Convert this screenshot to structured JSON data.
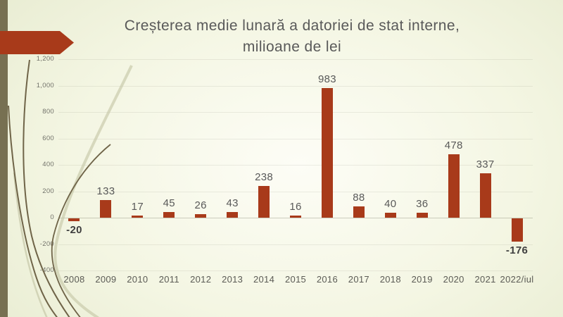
{
  "slide": {
    "title_line1": "Creșterea medie lunară a datoriei de stat interne,",
    "title_line2": "milioane de lei"
  },
  "chart_data": {
    "type": "bar",
    "title": "Creșterea medie lunară a datoriei de stat interne, milioane de lei",
    "categories": [
      "2008",
      "2009",
      "2010",
      "2011",
      "2012",
      "2013",
      "2014",
      "2015",
      "2016",
      "2017",
      "2018",
      "2019",
      "2020",
      "2021",
      "2022/iul"
    ],
    "values": [
      -20,
      133,
      17,
      45,
      26,
      43,
      238,
      16,
      983,
      88,
      40,
      36,
      478,
      337,
      -176
    ],
    "xlabel": "",
    "ylabel": "",
    "ylim": [
      -400,
      1200
    ],
    "ytick_step": 200,
    "grid": true,
    "legend": "none",
    "value_labels": true
  },
  "colors": {
    "bar": "#A83A1A",
    "arrow_accent": "#A83A1A",
    "left_edge_bar": "#777052",
    "title_text": "#595959",
    "axis_tick_text": "#72726a",
    "category_text": "#5b5b55",
    "value_label_text": "#595959",
    "negative_value_label_text": "#3f3f3f",
    "grass_dark": "#6f6448",
    "grass_light": "#c6c8a8"
  }
}
